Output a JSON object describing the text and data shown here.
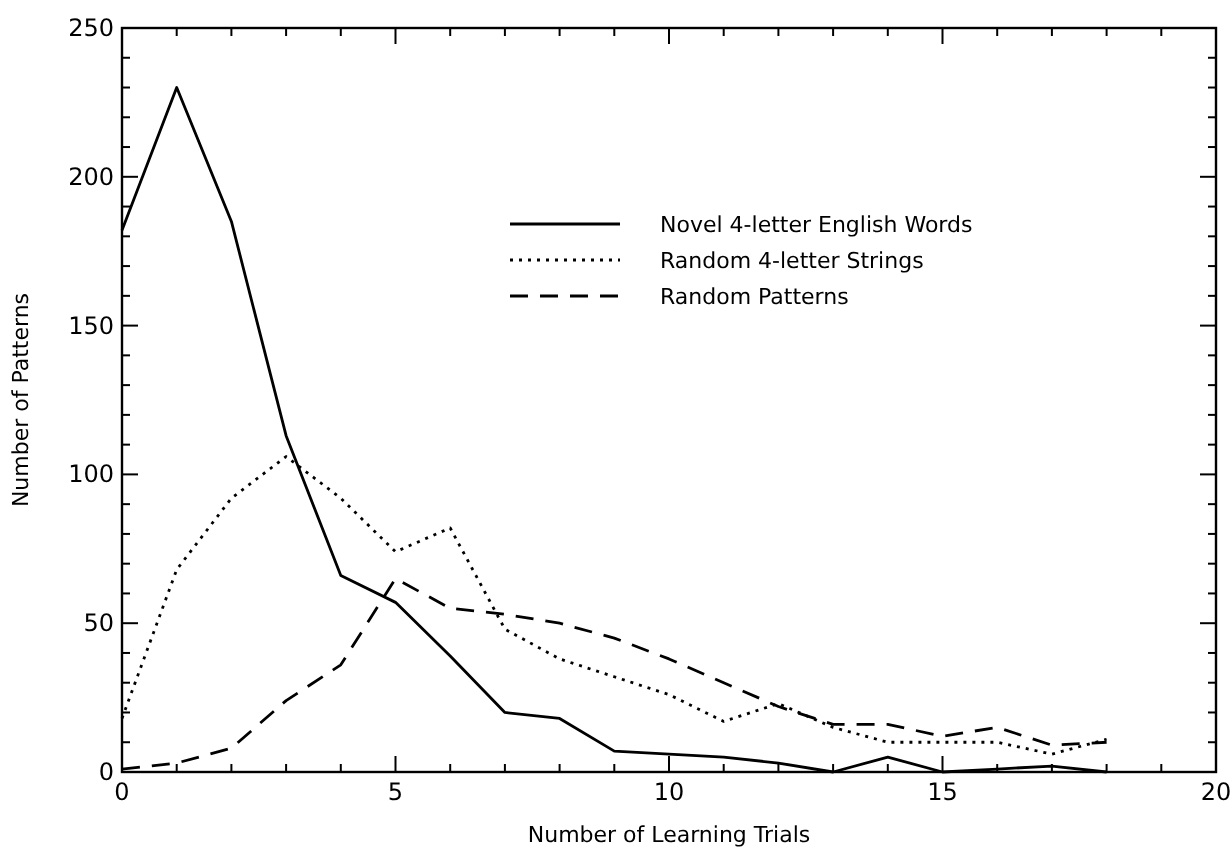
{
  "chart_data": {
    "type": "line",
    "xlabel": "Number of Learning Trials",
    "ylabel": "Number of Patterns",
    "x": [
      0,
      1,
      2,
      3,
      4,
      5,
      6,
      7,
      8,
      9,
      10,
      11,
      12,
      13,
      14,
      15,
      16,
      17,
      18
    ],
    "xlim": [
      0,
      20
    ],
    "xticks": [
      0,
      {
        "value": 1,
        "label": null
      },
      {
        "value": 2,
        "label": null
      },
      {
        "value": 3,
        "label": null
      },
      {
        "value": 4,
        "label": null
      },
      5,
      {
        "value": 6,
        "label": null
      },
      {
        "value": 7,
        "label": null
      },
      {
        "value": 8,
        "label": null
      },
      {
        "value": 9,
        "label": null
      },
      10,
      {
        "value": 11,
        "label": null
      },
      {
        "value": 12,
        "label": null
      },
      {
        "value": 13,
        "label": null
      },
      {
        "value": 14,
        "label": null
      },
      15,
      {
        "value": 16,
        "label": null
      },
      {
        "value": 17,
        "label": null
      },
      {
        "value": 18,
        "label": null
      },
      {
        "value": 19,
        "label": null
      },
      20
    ],
    "ylim": [
      0,
      250
    ],
    "yticks": [
      0,
      {
        "value": 10,
        "label": null
      },
      {
        "value": 20,
        "label": null
      },
      {
        "value": 30,
        "label": null
      },
      {
        "value": 40,
        "label": null
      },
      50,
      {
        "value": 60,
        "label": null
      },
      {
        "value": 70,
        "label": null
      },
      {
        "value": 80,
        "label": null
      },
      {
        "value": 90,
        "label": null
      },
      100,
      {
        "value": 110,
        "label": null
      },
      {
        "value": 120,
        "label": null
      },
      {
        "value": 130,
        "label": null
      },
      {
        "value": 140,
        "label": null
      },
      150,
      {
        "value": 160,
        "label": null
      },
      {
        "value": 170,
        "label": null
      },
      {
        "value": 180,
        "label": null
      },
      {
        "value": 190,
        "label": null
      },
      200,
      {
        "value": 210,
        "label": null
      },
      {
        "value": 220,
        "label": null
      },
      {
        "value": 230,
        "label": null
      },
      {
        "value": 240,
        "label": null
      },
      250
    ],
    "legend": "top right",
    "grid": false,
    "marker": "none",
    "series": [
      {
        "name": "Novel 4-letter English Words",
        "color": "#000000",
        "line_style": "solid",
        "values": [
          182,
          230,
          185,
          113,
          66,
          57,
          39,
          20,
          18,
          7,
          6,
          5,
          3,
          0,
          5,
          0,
          1,
          2,
          0
        ]
      },
      {
        "name": "Random 4-letter Strings",
        "color": "#000000",
        "line_style": "dotted",
        "values": [
          18,
          68,
          92,
          106,
          92,
          74,
          82,
          48,
          38,
          32,
          26,
          17,
          23,
          15,
          10,
          10,
          10,
          6,
          11
        ]
      },
      {
        "name": "Random Patterns",
        "color": "#000000",
        "line_style": "dashed",
        "values": [
          1,
          3,
          8,
          24,
          36,
          65,
          55,
          53,
          50,
          45,
          38,
          30,
          22,
          16,
          16,
          12,
          15,
          9,
          10
        ]
      }
    ]
  }
}
